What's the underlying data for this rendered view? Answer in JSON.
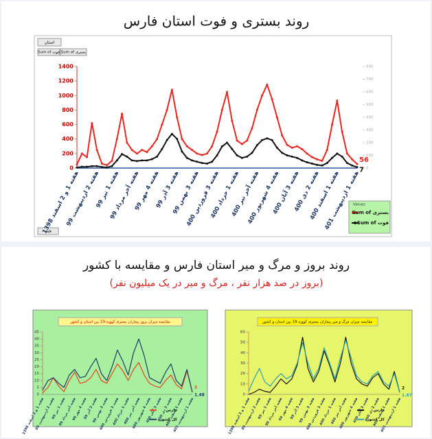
{
  "controls": {
    "filter": "استان",
    "fields": [
      "Sum of فوت",
      "Sum of بستری"
    ],
    "footer": "همه"
  },
  "section2": {
    "title": "روند بروز و مرگ و میر استان فارس و مقایسه با کشور",
    "subtitle": "(بروز در صد هزار نفر ، مرگ و میر در یک میلیون نفر)"
  },
  "chart_data": [
    {
      "type": "line",
      "title": "روند بستری و فوت استان فارس",
      "legend_title": "Values",
      "legend": "lower right",
      "end_labels": true,
      "categories": [
        "هفته 1 و 2 اسفند 1398",
        null,
        null,
        null,
        "هفته 2 اردیبهشت 99",
        null,
        null,
        null,
        "هفته 1 تیر 99",
        null,
        null,
        null,
        "هفته آخر مرداد 99",
        null,
        null,
        null,
        "هفته 4 مهر 99",
        null,
        null,
        null,
        "هفته 3 آذر 99",
        null,
        null,
        null,
        "هفته 3 بهمن 99",
        null,
        null,
        null,
        "هفته 3 فروردین 400",
        null,
        null,
        null,
        "هفته 1 خرداد 400",
        null,
        null,
        null,
        "هفته آخر تیر 400",
        null,
        null,
        null,
        "هفته 4 شهریور 400",
        null,
        null,
        null,
        "هفته 3 آبان 400",
        null,
        null,
        null,
        "هفته 2 دی 400",
        null,
        null,
        null,
        "هفته 1 اسفند 400",
        null,
        null,
        null,
        "هفته 1 اردیبهشت 401"
      ],
      "ylim": [
        0,
        1400
      ],
      "yticks": [
        0,
        200,
        400,
        600,
        800,
        1000,
        1200,
        1400
      ],
      "y2lim": [
        0,
        800
      ],
      "y2ticks": [
        0,
        100,
        200,
        300,
        400,
        500,
        600,
        700,
        800
      ],
      "series": [
        {
          "name": "Sum of بستری",
          "color": "#e8251f",
          "values": [
            50,
            200,
            150,
            620,
            250,
            60,
            40,
            100,
            400,
            750,
            350,
            250,
            200,
            250,
            220,
            300,
            400,
            600,
            800,
            1080,
            700,
            400,
            300,
            250,
            200,
            180,
            200,
            300,
            500,
            800,
            1050,
            650,
            380,
            330,
            380,
            550,
            800,
            1000,
            1150,
            950,
            700,
            450,
            320,
            280,
            300,
            260,
            200,
            150,
            120,
            100,
            250,
            600,
            930,
            500,
            200,
            120,
            56
          ]
        },
        {
          "name": "Sum of فوت",
          "color": "#111111",
          "axis": "y2",
          "values": [
            5,
            10,
            10,
            15,
            15,
            8,
            5,
            15,
            60,
            110,
            90,
            60,
            55,
            60,
            60,
            70,
            90,
            150,
            220,
            269,
            230,
            130,
            80,
            60,
            50,
            40,
            35,
            50,
            100,
            170,
            200,
            150,
            100,
            80,
            90,
            120,
            180,
            220,
            234,
            220,
            160,
            120,
            100,
            90,
            80,
            60,
            45,
            35,
            25,
            20,
            40,
            80,
            114,
            90,
            40,
            20,
            7
          ]
        }
      ]
    },
    {
      "type": "line",
      "title": "مقایسه میزان بروز بیماران بستری کووید-19 بین استان و کشور",
      "legend": "lower right",
      "end_labels": true,
      "categories": [
        "هفته 1 و 2 اسفند 1398",
        null,
        "هفته 2 اردیبهشت 99",
        null,
        "هفته 1 تیر 99",
        null,
        "هفته آخر مرداد 99",
        null,
        "هفته 4 مهر 99",
        null,
        "هفته 3 آذر 99",
        null,
        "هفته 3 بهمن 99",
        null,
        "هفته 3 فروردین 400",
        null,
        "هفته 1 خرداد 400",
        null,
        "هفته آخر تیر 400",
        null,
        "هفته 4 شهریور 400",
        null,
        "هفته 3 آبان 400",
        null,
        "هفته 2 دی 400",
        null,
        "هفته 1 اسفند 400",
        null,
        "هفته 1 اردیبهشت 401"
      ],
      "ylim": [
        0,
        45
      ],
      "yticks": [
        0,
        5,
        10,
        15,
        20,
        25,
        30,
        35,
        40,
        45
      ],
      "series": [
        {
          "name": "فارس",
          "color": "#e8401c",
          "values": [
            1,
            5,
            12,
            6,
            2,
            10,
            16,
            8,
            9,
            12,
            18,
            10,
            8,
            15,
            22,
            17,
            10,
            18,
            23,
            14,
            8,
            6,
            5,
            10,
            14,
            7,
            4,
            17,
            2
          ]
        },
        {
          "name": "کل کشور",
          "color": "#1f3864",
          "values": [
            3,
            10,
            12,
            8,
            5,
            14,
            18,
            12,
            13,
            20,
            26,
            15,
            10,
            20,
            32,
            24,
            14,
            30,
            40,
            28,
            12,
            10,
            8,
            16,
            22,
            10,
            6,
            18,
            1.48
          ]
        }
      ]
    },
    {
      "type": "line",
      "title": "مقایسه میزان مرگ و میر بیماران بستری کووید-19 بین استان و کشور",
      "legend": "lower right",
      "end_labels": true,
      "categories": [
        "هفته 1 و 2 اسفند 1398",
        null,
        "هفته 2 اردیبهشت 99",
        null,
        "هفته 1 تیر 99",
        null,
        "هفته آخر مرداد 99",
        null,
        "هفته 4 مهر 99",
        null,
        "هفته 3 آذر 99",
        null,
        "هفته 3 بهمن 99",
        null,
        "هفته 3 فروردین 400",
        null,
        "هفته 1 خرداد 400",
        null,
        "هفته آخر تیر 400",
        null,
        "هفته 4 شهریور 400",
        null,
        "هفته 3 آبان 400",
        null,
        "هفته 2 دی 400",
        null,
        "هفته 1 اسفند 400",
        null,
        "هفته 1 اردیبهشت 401"
      ],
      "ylim": [
        0,
        60
      ],
      "yticks": [
        0,
        10,
        20,
        30,
        40,
        50,
        60
      ],
      "series": [
        {
          "name": "فارس",
          "color": "#111111",
          "values": [
            0,
            2,
            5,
            3,
            2,
            8,
            15,
            10,
            15,
            28,
            55,
            25,
            12,
            22,
            42,
            28,
            12,
            30,
            55,
            30,
            15,
            10,
            8,
            16,
            20,
            10,
            5,
            22,
            2
          ]
        },
        {
          "name": "کل کشور",
          "color": "#2aa1b3",
          "values": [
            3,
            15,
            25,
            12,
            8,
            15,
            20,
            15,
            18,
            30,
            50,
            30,
            15,
            25,
            45,
            30,
            15,
            35,
            52,
            35,
            18,
            12,
            10,
            18,
            22,
            12,
            8,
            20,
            1.67
          ]
        }
      ]
    }
  ]
}
